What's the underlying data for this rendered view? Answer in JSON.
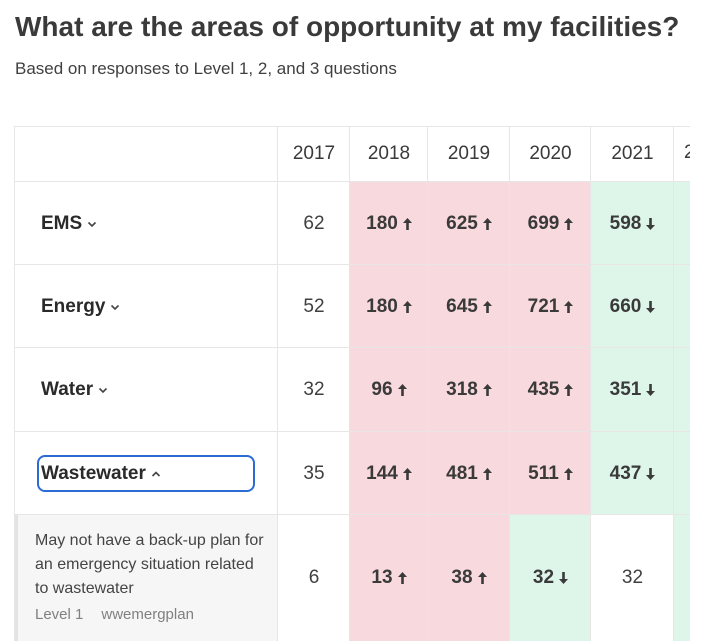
{
  "title": "What are the areas of opportunity at my facilities?",
  "subtitle": "Based on responses to Level 1, 2, and 3 questions",
  "table": {
    "columns": [
      "2017",
      "2018",
      "2019",
      "2020",
      "2021"
    ],
    "overflow_column": "2",
    "rows": [
      {
        "label": "EMS",
        "expanded": false,
        "values": [
          "62",
          "180",
          "625",
          "699",
          "598"
        ],
        "trends": [
          "none",
          "up",
          "up",
          "up",
          "down"
        ],
        "highlights": [
          "white",
          "red",
          "red",
          "red",
          "green"
        ]
      },
      {
        "label": "Energy",
        "expanded": false,
        "values": [
          "52",
          "180",
          "645",
          "721",
          "660"
        ],
        "trends": [
          "none",
          "up",
          "up",
          "up",
          "down"
        ],
        "highlights": [
          "white",
          "red",
          "red",
          "red",
          "green"
        ]
      },
      {
        "label": "Water",
        "expanded": false,
        "values": [
          "32",
          "96",
          "318",
          "435",
          "351"
        ],
        "trends": [
          "none",
          "up",
          "up",
          "up",
          "down"
        ],
        "highlights": [
          "white",
          "red",
          "red",
          "red",
          "green"
        ]
      },
      {
        "label": "Wastewater",
        "expanded": true,
        "focused": true,
        "values": [
          "35",
          "144",
          "481",
          "511",
          "437"
        ],
        "trends": [
          "none",
          "up",
          "up",
          "up",
          "down"
        ],
        "highlights": [
          "white",
          "red",
          "red",
          "red",
          "green"
        ]
      }
    ],
    "detail_row": {
      "description": "May not have a back-up plan for an emergency situation related to wastewater",
      "level": "Level 1",
      "code": "wwemergplan",
      "values": [
        "6",
        "13",
        "38",
        "32",
        "32"
      ],
      "trends": [
        "none",
        "up",
        "up",
        "down",
        "none"
      ],
      "highlights": [
        "white",
        "red",
        "red",
        "green",
        "white"
      ]
    }
  },
  "colors": {
    "increase_bg": "#f8d9dd",
    "decrease_bg": "#def6ea",
    "focus_border": "#2b6cd4"
  }
}
